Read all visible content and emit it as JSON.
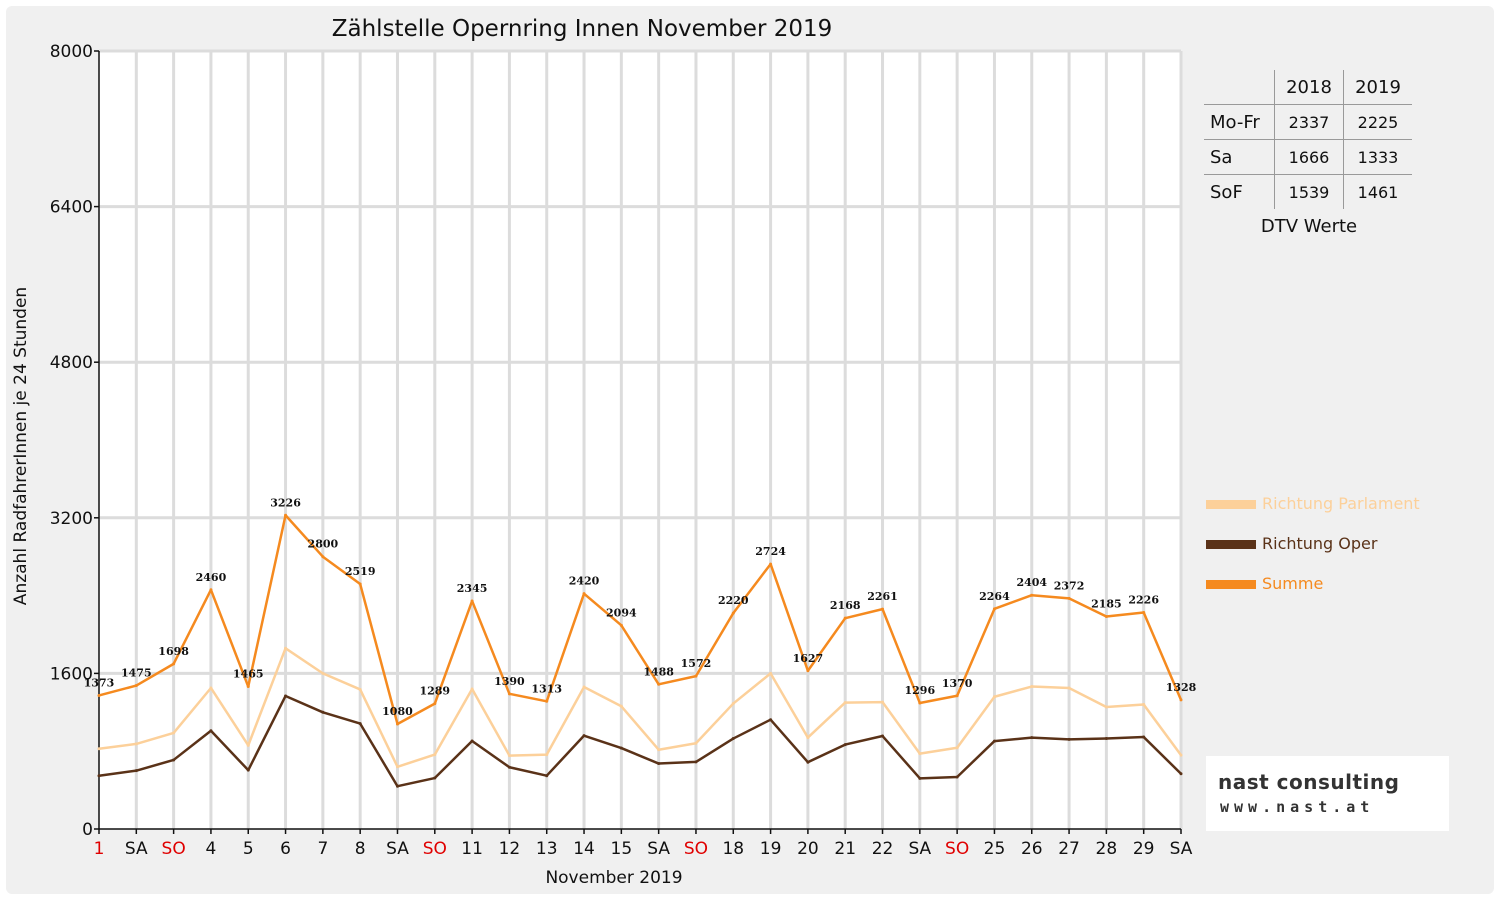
{
  "chart_data": {
    "type": "line",
    "title": "Zählstelle Opernring Innen November 2019",
    "xlabel": "November 2019",
    "ylabel": "Anzahl RadfahrerInnen je 24 Stunden",
    "ylim": [
      0,
      8000
    ],
    "yticks": [
      "0",
      "1600",
      "3200",
      "4800",
      "6400",
      "8000"
    ],
    "grid": true,
    "categories": [
      "1",
      "SA",
      "SO",
      "4",
      "5",
      "6",
      "7",
      "8",
      "SA",
      "SO",
      "11",
      "12",
      "13",
      "14",
      "15",
      "SA",
      "SO",
      "18",
      "19",
      "20",
      "21",
      "22",
      "SA",
      "SO",
      "25",
      "26",
      "27",
      "28",
      "29",
      "SA"
    ],
    "red_categories": [
      0,
      2,
      9,
      16,
      23
    ],
    "series": [
      {
        "name": "Richtung Parlament",
        "color": "#fcd09a",
        "values": [
          825,
          875,
          988,
          1450,
          860,
          1858,
          1600,
          1435,
          640,
          765,
          1440,
          755,
          765,
          1460,
          1262,
          815,
          882,
          1290,
          1600,
          940,
          1300,
          1305,
          775,
          835,
          1360,
          1465,
          1450,
          1255,
          1280,
          760
        ]
      },
      {
        "name": "Richtung Oper",
        "color": "#5a3218",
        "values": [
          548,
          600,
          710,
          1010,
          605,
          1368,
          1200,
          1084,
          440,
          524,
          905,
          635,
          548,
          960,
          832,
          673,
          690,
          930,
          1124,
          687,
          868,
          956,
          521,
          535,
          904,
          939,
          922,
          930,
          946,
          568
        ]
      },
      {
        "name": "Summe",
        "color": "#f58a1f",
        "values": [
          1373,
          1475,
          1698,
          2460,
          1465,
          3226,
          2800,
          2519,
          1080,
          1289,
          2345,
          1390,
          1313,
          2420,
          2094,
          1488,
          1572,
          2220,
          2724,
          1627,
          2168,
          2261,
          1296,
          1370,
          2264,
          2404,
          2372,
          2185,
          2226,
          1328
        ],
        "labels": [
          "1373",
          "1475",
          "1698",
          "2460",
          "1465",
          "3226",
          "2800",
          "2519",
          "1080",
          "1289",
          "2345",
          "1390",
          "1313",
          "2420",
          "2094",
          "1488",
          "1572",
          "2220",
          "2724",
          "1627",
          "2168",
          "2261",
          "1296",
          "1370",
          "2264",
          "2404",
          "2372",
          "2185",
          "2226",
          "1328"
        ]
      }
    ],
    "legend_position": "right"
  },
  "dtv_table": {
    "headers": [
      "",
      "2018",
      "2019"
    ],
    "rows": [
      {
        "label": "Mo-Fr",
        "v2018": "2337",
        "v2019": "2225"
      },
      {
        "label": "Sa",
        "v2018": "1666",
        "v2019": "1333"
      },
      {
        "label": "SoF",
        "v2018": "1539",
        "v2019": "1461"
      }
    ],
    "caption": "DTV Werte"
  },
  "logo": {
    "name": "nast consulting",
    "url": "www.nast.at"
  }
}
